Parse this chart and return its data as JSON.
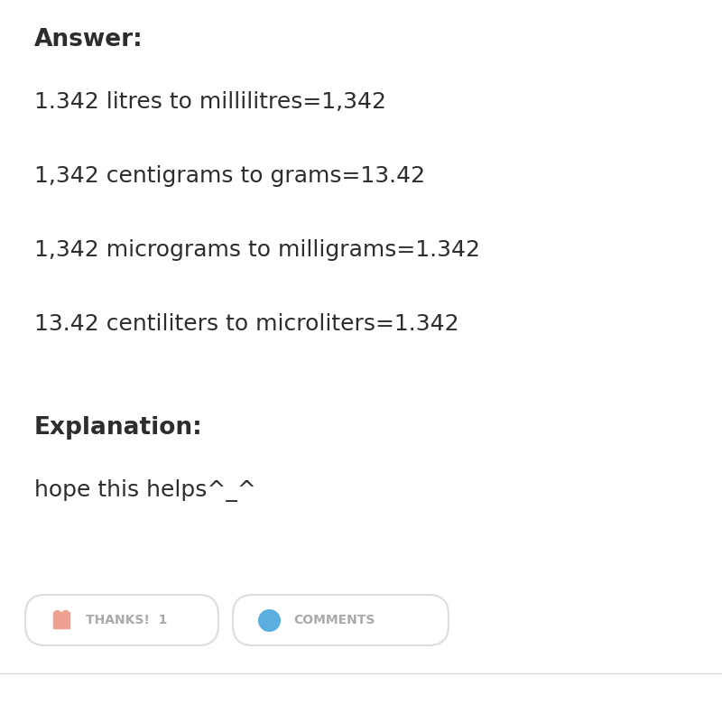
{
  "background_color": "#ffffff",
  "answer_label": "Answer:",
  "lines": [
    "1.342 litres to millilitres=1,342",
    "1,342 centigrams to grams=13.42",
    "1,342 micrograms to milligrams=1.342",
    "13.42 centiliters to microliters=1.342"
  ],
  "explanation_label": "Explanation:",
  "explanation_text": "hope this helps^_^",
  "thanks_text": "THANKS!  1",
  "comments_text": "COMMENTS",
  "text_color": "#2d2d2d",
  "button_text_color": "#aaaaaa",
  "button_border_color": "#dddddd",
  "heart_color": "#f0a090",
  "bubble_color": "#5baee0",
  "font_size_answer": 19,
  "font_size_lines": 18,
  "font_size_explanation": 19,
  "font_size_explanation_text": 18,
  "font_size_buttons": 10
}
